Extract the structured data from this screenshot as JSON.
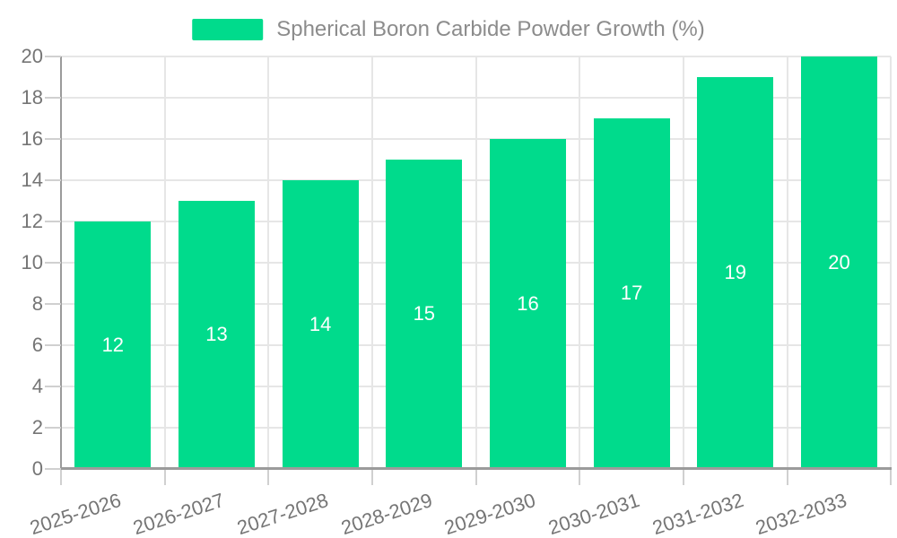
{
  "chart_data": {
    "type": "bar",
    "title": "Spherical Boron Carbide Powder Growth (%)",
    "categories": [
      "2025-2026",
      "2026-2027",
      "2027-2028",
      "2028-2029",
      "2029-2030",
      "2030-2031",
      "2031-2032",
      "2032-2033"
    ],
    "values": [
      12,
      13,
      14,
      15,
      16,
      17,
      19,
      20
    ],
    "xlabel": "",
    "ylabel": "",
    "ylim": [
      0,
      20
    ],
    "ytick_step": 2,
    "yticks": [
      0,
      2,
      4,
      6,
      8,
      10,
      12,
      14,
      16,
      18,
      20
    ],
    "grid": true,
    "legend_position": "top-center",
    "bar_value_labels_inside": true
  },
  "colors": {
    "bar": "#00db8c",
    "bar_value_label": "#ffffff",
    "axis_label": "#757575",
    "legend_text": "#8c8c8c",
    "gridline": "#e6e6e6",
    "tick": "#d0d0d0",
    "axis_line": "#9b9b9b",
    "background": "#ffffff"
  }
}
